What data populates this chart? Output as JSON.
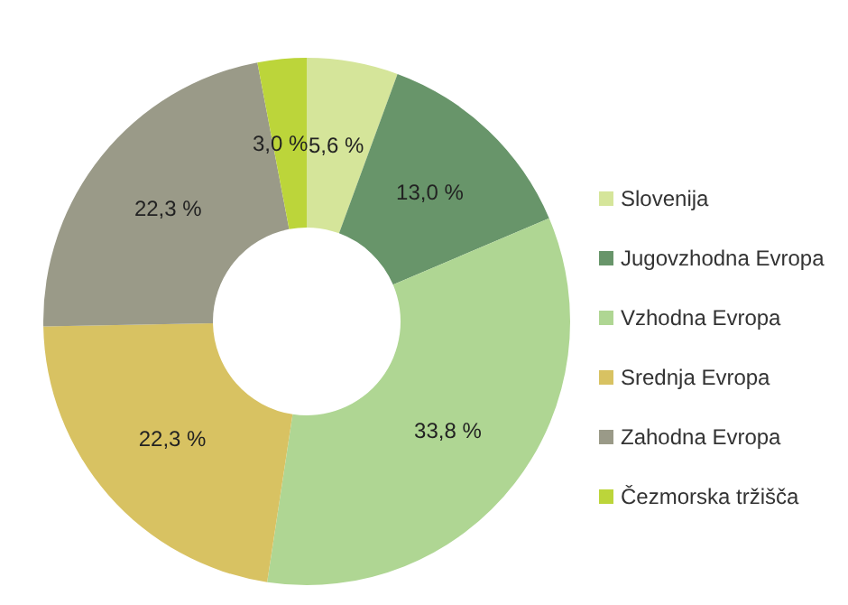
{
  "chart_data": {
    "type": "donut",
    "categories": [
      "Slovenija",
      "Jugovzhodna Evropa",
      "Vzhodna Evropa",
      "Srednja Evropa",
      "Zahodna Evropa",
      "Čezmorska tržišča"
    ],
    "values": [
      5.6,
      13.0,
      33.8,
      22.3,
      22.3,
      3.0
    ],
    "colors": [
      "#d5e59a",
      "#68956a",
      "#afd693",
      "#d8c262",
      "#9a9a88",
      "#bcd53a"
    ],
    "value_labels": [
      "5,6 %",
      "13,0 %",
      "33,8 %",
      "22,3 %",
      "22,3 %",
      "3,0 %"
    ],
    "legend": "right"
  }
}
